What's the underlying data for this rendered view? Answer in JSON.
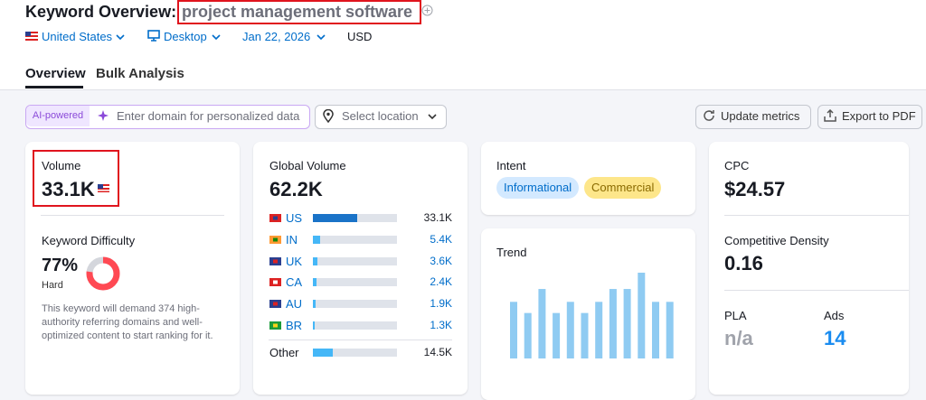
{
  "header": {
    "title": "Keyword Overview:",
    "keyword": "project management software",
    "database": "United States",
    "device": "Desktop",
    "date": "Jan 22, 2026",
    "currency": "USD"
  },
  "tabs": [
    "Overview",
    "Bulk Analysis"
  ],
  "toolbar": {
    "badge": "AI-powered",
    "domain_placeholder": "Enter domain for personalized data",
    "location_placeholder": "Select location",
    "update_button": "Update metrics",
    "export_button": "Export to PDF"
  },
  "volume": {
    "label": "Volume",
    "value": "33.1K"
  },
  "keyword_difficulty": {
    "label": "Keyword Difficulty",
    "value": 77,
    "value_label": "77%",
    "level": "Hard",
    "description": "This keyword will demand 374 high-authority referring domains and well-optimized content to start ranking for it."
  },
  "global_volume": {
    "label": "Global Volume",
    "value": 62200,
    "value_label": "62.2K",
    "rows": [
      {
        "country": "US",
        "volume": 33100,
        "volume_label": "33.1K"
      },
      {
        "country": "IN",
        "volume": 5400,
        "volume_label": "5.4K"
      },
      {
        "country": "UK",
        "volume": 3600,
        "volume_label": "3.6K"
      },
      {
        "country": "CA",
        "volume": 2400,
        "volume_label": "2.4K"
      },
      {
        "country": "AU",
        "volume": 1900,
        "volume_label": "1.9K"
      },
      {
        "country": "BR",
        "volume": 1300,
        "volume_label": "1.3K"
      }
    ],
    "other": {
      "label": "Other",
      "volume": 14500,
      "volume_label": "14.5K"
    }
  },
  "intent": {
    "label": "Intent",
    "tags": [
      "Informational",
      "Commercial"
    ]
  },
  "trend": {
    "label": "Trend",
    "values": [
      0.66,
      0.53,
      0.81,
      0.53,
      0.66,
      0.53,
      0.66,
      0.81,
      0.81,
      1,
      0.66,
      0.66
    ]
  },
  "cpc": {
    "label": "CPC",
    "value": "$24.57"
  },
  "competitive_density": {
    "label": "Competitive Density",
    "value": "0.16"
  },
  "pla": {
    "label": "PLA",
    "value": "n/a"
  },
  "ads": {
    "label": "Ads",
    "value": "14"
  }
}
